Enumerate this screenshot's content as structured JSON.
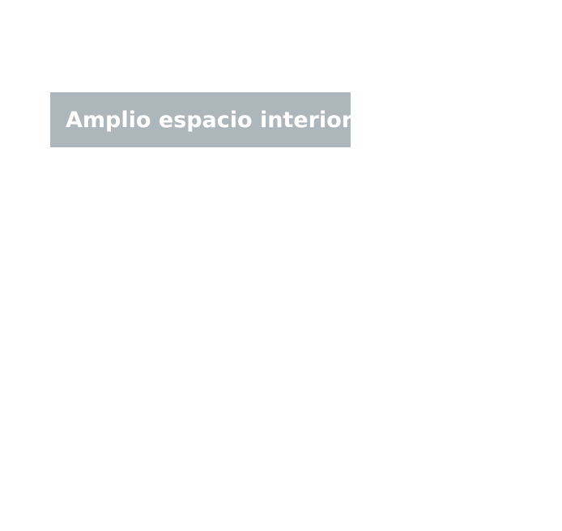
{
  "feature_label": {
    "text": "Amplio espacio interior",
    "background_color": "#adb7bb",
    "text_color": "#ffffff"
  }
}
